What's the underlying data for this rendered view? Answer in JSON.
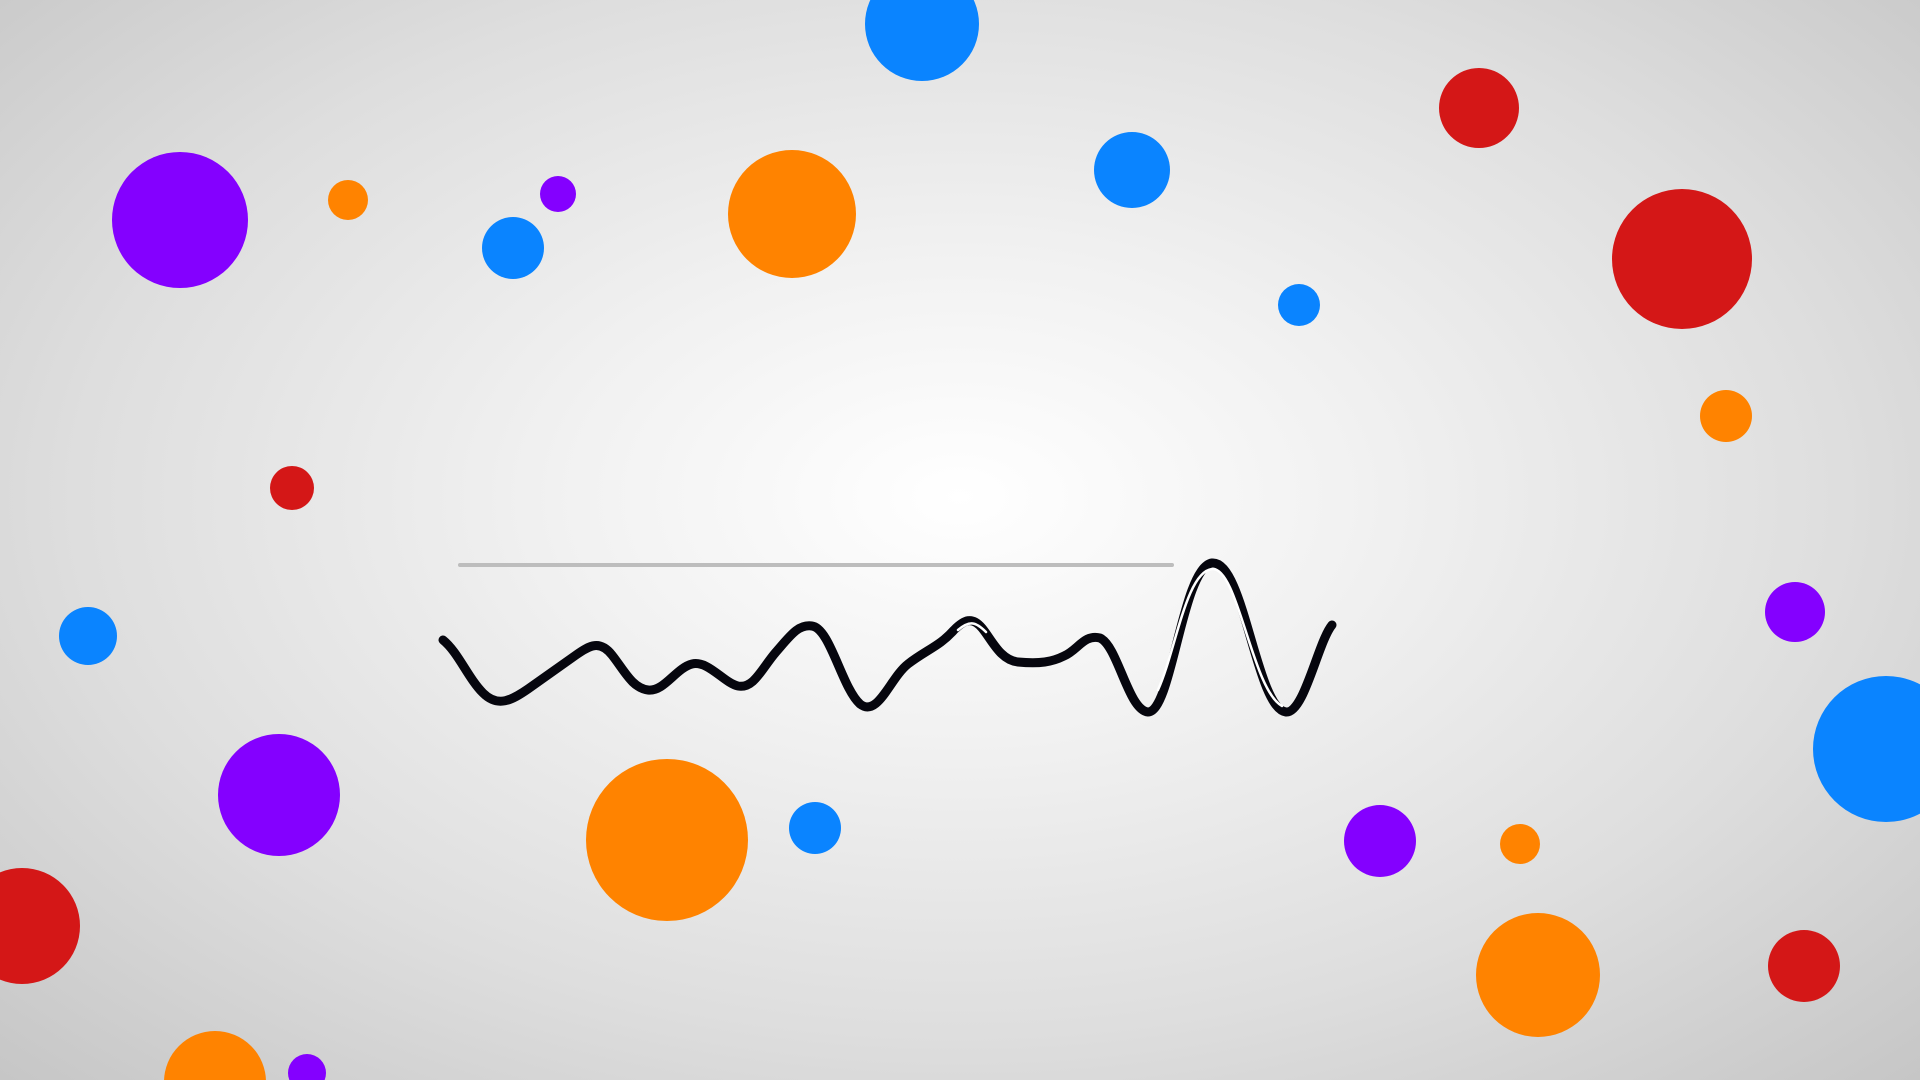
{
  "colors": {
    "blue": "#0a84ff",
    "orange": "#ff8300",
    "purple": "#8400ff",
    "red": "#d41717",
    "wave": "#06060e",
    "guide_line": "#bdbdbd",
    "background_center": "#ffffff",
    "background_edge": "#c6c6c6"
  },
  "bubbles": [
    {
      "id": "bubble-1",
      "color": "blue"
    },
    {
      "id": "bubble-2",
      "color": "purple"
    },
    {
      "id": "bubble-3",
      "color": "orange"
    },
    {
      "id": "bubble-4",
      "color": "purple"
    },
    {
      "id": "bubble-5",
      "color": "blue"
    },
    {
      "id": "bubble-6",
      "color": "orange"
    },
    {
      "id": "bubble-7",
      "color": "blue"
    },
    {
      "id": "bubble-8",
      "color": "red"
    },
    {
      "id": "bubble-9",
      "color": "blue"
    },
    {
      "id": "bubble-10",
      "color": "red"
    },
    {
      "id": "bubble-11",
      "color": "orange"
    },
    {
      "id": "bubble-12",
      "color": "red"
    },
    {
      "id": "bubble-13",
      "color": "blue"
    },
    {
      "id": "bubble-14",
      "color": "purple"
    },
    {
      "id": "bubble-15",
      "color": "purple"
    },
    {
      "id": "bubble-16",
      "color": "blue"
    },
    {
      "id": "bubble-17",
      "color": "orange"
    },
    {
      "id": "bubble-18",
      "color": "blue"
    },
    {
      "id": "bubble-19",
      "color": "purple"
    },
    {
      "id": "bubble-20",
      "color": "orange"
    },
    {
      "id": "bubble-21",
      "color": "red"
    },
    {
      "id": "bubble-22",
      "color": "orange"
    },
    {
      "id": "bubble-23",
      "color": "red"
    },
    {
      "id": "bubble-24",
      "color": "orange"
    },
    {
      "id": "bubble-25",
      "color": "purple"
    }
  ]
}
